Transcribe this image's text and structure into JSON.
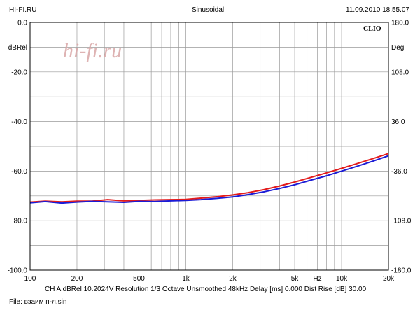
{
  "header": {
    "left": "HI-FI.RU",
    "center": "Sinusoidal",
    "right": "11.09.2010 18.55.07"
  },
  "watermark": "hi-fi.ru",
  "brand": "CLIO",
  "footer": {
    "info": "CH A   dBRel 10.2024V   Resolution 1/3 Octave   Unsmoothed   48kHz   Delay [ms] 0.000   Dist Rise [dB] 30.00",
    "file": "File: взаим п-л.sin"
  },
  "colors": {
    "series1": "#e31b1b",
    "series2": "#1b1bd6",
    "grid": "#9a9a9a",
    "watermark": "#d9a6a6"
  },
  "chart_data": {
    "type": "line",
    "xscale": "log",
    "xlim": [
      100,
      20000
    ],
    "ylim": [
      -100,
      0
    ],
    "y2lim": [
      -180,
      180
    ],
    "y_unit": "dBRel",
    "y2_unit": "Deg",
    "x_unit": "Hz",
    "grid": true,
    "x_ticks": [
      {
        "v": 100,
        "label": "100"
      },
      {
        "v": 200,
        "label": "200"
      },
      {
        "v": 500,
        "label": "500"
      },
      {
        "v": 1000,
        "label": "1k"
      },
      {
        "v": 2000,
        "label": "2k"
      },
      {
        "v": 5000,
        "label": "5k"
      },
      {
        "v": 10000,
        "label": "10k"
      },
      {
        "v": 20000,
        "label": "20k"
      }
    ],
    "x_unit_position": 7000,
    "y_ticks": [
      {
        "v": 0,
        "label": "0.0"
      },
      {
        "v": -20,
        "label": "-20.0"
      },
      {
        "v": -40,
        "label": "-40.0"
      },
      {
        "v": -60,
        "label": "-60.0"
      },
      {
        "v": -80,
        "label": "-80.0"
      },
      {
        "v": -100,
        "label": "-100.0"
      }
    ],
    "y2_ticks": [
      {
        "v": 180,
        "label": "180.0"
      },
      {
        "v": 108,
        "label": "108.0"
      },
      {
        "v": 36,
        "label": "36.0"
      },
      {
        "v": -36,
        "label": "-36.0"
      },
      {
        "v": -108,
        "label": "-108.0"
      },
      {
        "v": -180,
        "label": "-180.0"
      }
    ],
    "series": [
      {
        "color": "#e31b1b",
        "x": [
          100,
          125,
          160,
          200,
          250,
          315,
          400,
          500,
          630,
          800,
          1000,
          1250,
          1600,
          2000,
          2500,
          3150,
          4000,
          5000,
          6300,
          8000,
          10000,
          12500,
          16000,
          20000
        ],
        "y": [
          -72.5,
          -72.1,
          -72.4,
          -72.1,
          -72.1,
          -71.5,
          -72.0,
          -71.8,
          -71.6,
          -71.5,
          -71.4,
          -70.9,
          -70.3,
          -69.6,
          -68.7,
          -67.5,
          -66.0,
          -64.4,
          -62.6,
          -60.7,
          -58.9,
          -57.0,
          -54.9,
          -52.9
        ]
      },
      {
        "color": "#1b1bd6",
        "x": [
          100,
          125,
          160,
          200,
          250,
          315,
          400,
          500,
          630,
          800,
          1000,
          1250,
          1600,
          2000,
          2500,
          3150,
          4000,
          5000,
          6300,
          8000,
          10000,
          12500,
          16000,
          20000
        ],
        "y": [
          -72.8,
          -72.3,
          -72.9,
          -72.5,
          -72.2,
          -72.4,
          -72.6,
          -72.2,
          -72.3,
          -72.0,
          -71.8,
          -71.5,
          -71.0,
          -70.4,
          -69.5,
          -68.4,
          -67.0,
          -65.5,
          -63.7,
          -61.9,
          -60.0,
          -58.1,
          -55.9,
          -53.8
        ]
      }
    ]
  }
}
